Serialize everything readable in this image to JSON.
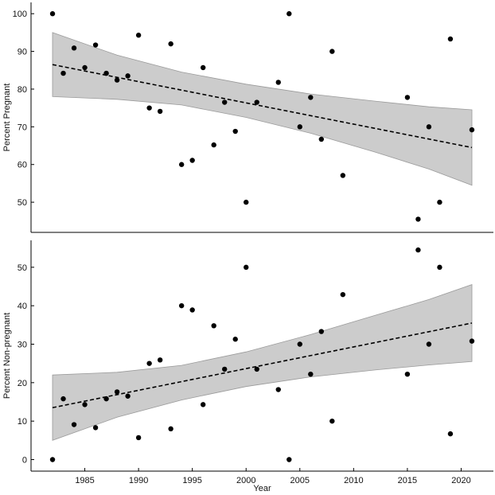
{
  "chart_data": [
    {
      "type": "scatter",
      "ylabel": "Percent Pregnant",
      "xlim": [
        1980,
        2023
      ],
      "ylim": [
        42,
        103
      ],
      "yticks": [
        50,
        60,
        70,
        80,
        90,
        100
      ],
      "grid": false,
      "points": [
        {
          "x": 1982,
          "y": 100.0
        },
        {
          "x": 1983,
          "y": 84.2
        },
        {
          "x": 1984,
          "y": 90.9
        },
        {
          "x": 1985,
          "y": 85.7
        },
        {
          "x": 1986,
          "y": 91.7
        },
        {
          "x": 1987,
          "y": 84.2
        },
        {
          "x": 1988,
          "y": 82.4
        },
        {
          "x": 1989,
          "y": 83.5
        },
        {
          "x": 1990,
          "y": 94.3
        },
        {
          "x": 1991,
          "y": 75.0
        },
        {
          "x": 1992,
          "y": 74.1
        },
        {
          "x": 1993,
          "y": 92.0
        },
        {
          "x": 1994,
          "y": 60.0
        },
        {
          "x": 1995,
          "y": 61.1
        },
        {
          "x": 1996,
          "y": 85.7
        },
        {
          "x": 1997,
          "y": 65.2
        },
        {
          "x": 1998,
          "y": 76.5
        },
        {
          "x": 1999,
          "y": 68.8
        },
        {
          "x": 2000,
          "y": 50.0
        },
        {
          "x": 2001,
          "y": 76.5
        },
        {
          "x": 2003,
          "y": 81.8
        },
        {
          "x": 2004,
          "y": 100.0
        },
        {
          "x": 2005,
          "y": 70.0
        },
        {
          "x": 2006,
          "y": 77.8
        },
        {
          "x": 2007,
          "y": 66.7
        },
        {
          "x": 2008,
          "y": 90.0
        },
        {
          "x": 2009,
          "y": 57.1
        },
        {
          "x": 2015,
          "y": 77.8
        },
        {
          "x": 2016,
          "y": 45.5
        },
        {
          "x": 2017,
          "y": 70.0
        },
        {
          "x": 2018,
          "y": 50.0
        },
        {
          "x": 2019,
          "y": 93.3
        },
        {
          "x": 2021,
          "y": 69.2
        }
      ],
      "trend": {
        "x": [
          1982,
          2021
        ],
        "y": [
          86.5,
          64.5
        ]
      },
      "ci_upper": {
        "x": [
          1982,
          1988,
          1994,
          2000,
          2006,
          2012,
          2017,
          2021
        ],
        "y": [
          95.0,
          89.0,
          84.5,
          81.3,
          78.7,
          76.8,
          75.3,
          74.5
        ]
      },
      "ci_lower": {
        "x": [
          1982,
          1988,
          1994,
          2000,
          2006,
          2012,
          2017,
          2021
        ],
        "y": [
          78.0,
          77.3,
          75.8,
          72.5,
          68.3,
          63.3,
          58.8,
          54.5
        ]
      }
    },
    {
      "type": "scatter",
      "xlabel": "Year",
      "ylabel": "Percent Non-pregnant",
      "xlim": [
        1980,
        2023
      ],
      "ylim": [
        -3,
        57
      ],
      "xticks": [
        1985,
        1990,
        1995,
        2000,
        2005,
        2010,
        2015,
        2020
      ],
      "yticks": [
        0,
        10,
        20,
        30,
        40,
        50
      ],
      "grid": false,
      "points": [
        {
          "x": 1982,
          "y": 0.0
        },
        {
          "x": 1983,
          "y": 15.8
        },
        {
          "x": 1984,
          "y": 9.1
        },
        {
          "x": 1985,
          "y": 14.3
        },
        {
          "x": 1986,
          "y": 8.3
        },
        {
          "x": 1987,
          "y": 15.8
        },
        {
          "x": 1988,
          "y": 17.6
        },
        {
          "x": 1989,
          "y": 16.5
        },
        {
          "x": 1990,
          "y": 5.7
        },
        {
          "x": 1991,
          "y": 25.0
        },
        {
          "x": 1992,
          "y": 25.9
        },
        {
          "x": 1993,
          "y": 8.0
        },
        {
          "x": 1994,
          "y": 40.0
        },
        {
          "x": 1995,
          "y": 38.9
        },
        {
          "x": 1996,
          "y": 14.3
        },
        {
          "x": 1997,
          "y": 34.8
        },
        {
          "x": 1998,
          "y": 23.5
        },
        {
          "x": 1999,
          "y": 31.3
        },
        {
          "x": 2000,
          "y": 50.0
        },
        {
          "x": 2001,
          "y": 23.5
        },
        {
          "x": 2003,
          "y": 18.2
        },
        {
          "x": 2004,
          "y": 0.0
        },
        {
          "x": 2005,
          "y": 30.0
        },
        {
          "x": 2006,
          "y": 22.2
        },
        {
          "x": 2007,
          "y": 33.3
        },
        {
          "x": 2008,
          "y": 10.0
        },
        {
          "x": 2009,
          "y": 42.9
        },
        {
          "x": 2015,
          "y": 22.2
        },
        {
          "x": 2016,
          "y": 54.5
        },
        {
          "x": 2017,
          "y": 30.0
        },
        {
          "x": 2018,
          "y": 50.0
        },
        {
          "x": 2019,
          "y": 6.7
        },
        {
          "x": 2021,
          "y": 30.8
        }
      ],
      "trend": {
        "x": [
          1982,
          2021
        ],
        "y": [
          13.5,
          35.5
        ]
      },
      "ci_upper": {
        "x": [
          1982,
          1988,
          1994,
          2000,
          2006,
          2012,
          2017,
          2021
        ],
        "y": [
          22.0,
          22.7,
          24.5,
          28.0,
          32.5,
          37.5,
          41.6,
          45.5
        ]
      },
      "ci_lower": {
        "x": [
          1982,
          1988,
          1994,
          2000,
          2006,
          2012,
          2017,
          2021
        ],
        "y": [
          5.0,
          11.0,
          15.5,
          19.0,
          21.5,
          23.3,
          24.6,
          25.5
        ]
      }
    }
  ]
}
